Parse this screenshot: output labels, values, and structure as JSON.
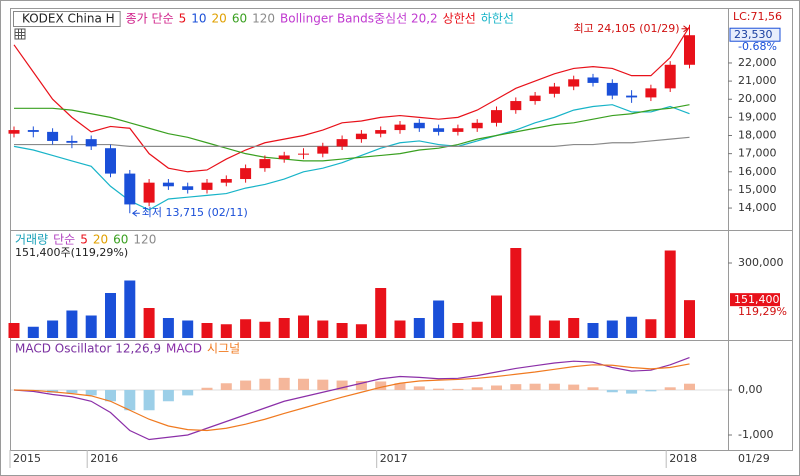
{
  "chart_data": [
    {
      "type": "candlestick",
      "title": "KODEX China H",
      "ma_label": "종가 단순",
      "ma_label_color": "#d0208a",
      "categories": [
        "2015",
        null,
        null,
        null,
        "2016",
        null,
        null,
        null,
        null,
        null,
        null,
        null,
        null,
        null,
        null,
        null,
        null,
        null,
        null,
        "2017",
        null,
        null,
        null,
        null,
        null,
        null,
        null,
        null,
        null,
        null,
        null,
        null,
        null,
        null,
        "2018",
        null
      ],
      "date_label": "01/29",
      "open": [
        18100,
        18300,
        18200,
        17700,
        17800,
        17300,
        15900,
        14300,
        15400,
        15200,
        15000,
        15400,
        15600,
        16200,
        16700,
        17000,
        17000,
        17400,
        17800,
        18100,
        18300,
        18700,
        18400,
        18200,
        18400,
        18700,
        19400,
        19900,
        20300,
        20700,
        21200,
        20900,
        20200,
        20100,
        20600,
        21900
      ],
      "high": [
        18500,
        18500,
        18400,
        18000,
        18000,
        17500,
        16100,
        15600,
        15600,
        15400,
        15600,
        15800,
        16400,
        16900,
        17100,
        17300,
        17600,
        18000,
        18300,
        18500,
        18800,
        18900,
        18600,
        18600,
        18900,
        19600,
        20100,
        20400,
        20900,
        21300,
        21400,
        21100,
        20500,
        20800,
        22100,
        24105
      ],
      "low": [
        17900,
        17900,
        17500,
        17300,
        17200,
        15700,
        13715,
        14100,
        15000,
        14800,
        14800,
        15200,
        15400,
        16000,
        16500,
        16700,
        16800,
        17200,
        17600,
        17900,
        18100,
        18200,
        18000,
        18000,
        18200,
        18500,
        19200,
        19700,
        20100,
        20500,
        20700,
        20000,
        19800,
        19900,
        20400,
        21700
      ],
      "close": [
        18300,
        18200,
        17700,
        17600,
        17400,
        15900,
        14200,
        15400,
        15200,
        15000,
        15400,
        15600,
        16200,
        16700,
        16900,
        17000,
        17400,
        17800,
        18100,
        18300,
        18600,
        18400,
        18200,
        18400,
        18700,
        19400,
        19900,
        20200,
        20700,
        21100,
        20900,
        20200,
        20100,
        20600,
        21900,
        23530
      ],
      "up_color": "#e8111a",
      "down_color": "#1a4fd8",
      "series": [
        {
          "name": "5",
          "color": "#e8111a"
        },
        {
          "name": "10",
          "color": "#1a4fd8"
        },
        {
          "name": "20",
          "color": "#e0a000"
        },
        {
          "name": "60",
          "color": "#3aa020",
          "values": [
            19500,
            19500,
            19500,
            19400,
            19200,
            19000,
            18700,
            18400,
            18100,
            17900,
            17600,
            17300,
            17000,
            16800,
            16700,
            16600,
            16600,
            16700,
            16800,
            16900,
            17000,
            17200,
            17300,
            17500,
            17800,
            18000,
            18200,
            18400,
            18600,
            18700,
            18900,
            19100,
            19200,
            19400,
            19500,
            19700
          ]
        },
        {
          "name": "120",
          "color": "#8a8a8a",
          "values": [
            17500,
            17500,
            17500,
            17500,
            17500,
            17500,
            17400,
            17400,
            17400,
            17400,
            17400,
            17400,
            17400,
            17400,
            17400,
            17400,
            17400,
            17400,
            17400,
            17400,
            17400,
            17400,
            17400,
            17400,
            17400,
            17400,
            17400,
            17400,
            17400,
            17500,
            17500,
            17600,
            17600,
            17700,
            17800,
            17900
          ]
        }
      ],
      "bollinger": {
        "label": "Bollinger Bands중심선 20,2",
        "color": "#c03ad0",
        "series": [
          {
            "name": "상한선",
            "color": "#e8111a",
            "values": [
              23000,
              21500,
              20000,
              19000,
              18200,
              18500,
              18400,
              17000,
              16200,
              16000,
              16100,
              16700,
              17200,
              17600,
              17800,
              18000,
              18300,
              18700,
              18800,
              19000,
              19100,
              19000,
              18900,
              19000,
              19400,
              20000,
              20600,
              21000,
              21400,
              21700,
              21800,
              21700,
              21300,
              21300,
              22300,
              24000
            ]
          },
          {
            "name": "하한선",
            "color": "#18b4c8",
            "values": [
              17400,
              17200,
              16900,
              16600,
              16300,
              15200,
              14400,
              13900,
              14500,
              14600,
              14700,
              14800,
              15100,
              15300,
              15600,
              16000,
              16200,
              16500,
              16900,
              17300,
              17600,
              17700,
              17500,
              17400,
              17700,
              18000,
              18300,
              18700,
              19000,
              19400,
              19600,
              19700,
              19300,
              19300,
              19600,
              19200
            ]
          }
        ]
      },
      "high_label": "최고 24,105 (01/29)",
      "low_label": "최저 13,715 (02/11)",
      "lc_label": "LC:71,56",
      "change": "-0.68%",
      "last": {
        "value": 23530,
        "label": "23,530"
      },
      "ylim": [
        12900,
        24700
      ],
      "yticks": [
        {
          "value": 14000,
          "label": "14,000"
        },
        {
          "value": 15000,
          "label": "15,000"
        },
        {
          "value": 16000,
          "label": "16,000"
        },
        {
          "value": 17000,
          "label": "17,000"
        },
        {
          "value": 18000,
          "label": "18,000"
        },
        {
          "value": 19000,
          "label": "19,000"
        },
        {
          "value": 20000,
          "label": "20,000"
        },
        {
          "value": 21000,
          "label": "21,000"
        },
        {
          "value": 22000,
          "label": "22,000"
        }
      ]
    },
    {
      "type": "bar",
      "title": "거래량",
      "title_color": "#18a0b8",
      "ma_label": "단순",
      "ma_label_color": "#b040c0",
      "ma_legend": [
        {
          "name": "5",
          "color": "#e8111a"
        },
        {
          "name": "20",
          "color": "#e0a000"
        },
        {
          "name": "60",
          "color": "#3aa020"
        },
        {
          "name": "120",
          "color": "#8a8a8a"
        }
      ],
      "info": "151,400주(119,29%)",
      "ratio": "119,29%",
      "values": [
        60000,
        45000,
        70000,
        110000,
        90000,
        180000,
        230000,
        120000,
        80000,
        70000,
        60000,
        55000,
        75000,
        65000,
        80000,
        90000,
        70000,
        60000,
        55000,
        200000,
        70000,
        80000,
        150000,
        60000,
        65000,
        170000,
        360000,
        90000,
        70000,
        80000,
        60000,
        70000,
        85000,
        75000,
        350000,
        151400
      ],
      "last": {
        "value": 151400,
        "label": "151,400"
      },
      "ylim": [
        0,
        424000
      ],
      "yticks": [
        {
          "value": 300000,
          "label": "300,000"
        }
      ]
    },
    {
      "type": "line",
      "title": "MACD Oscillator 12,26,9",
      "title_color": "#7a2fa0",
      "histogram": {
        "values": [
          0,
          -20,
          -60,
          -70,
          -120,
          -250,
          -450,
          -450,
          -250,
          -120,
          50,
          150,
          210,
          250,
          270,
          250,
          230,
          210,
          200,
          190,
          150,
          80,
          30,
          25,
          60,
          100,
          130,
          140,
          140,
          120,
          60,
          -50,
          -80,
          -30,
          60,
          140
        ],
        "up_color": "#f5b79b",
        "down_color": "#9ccfe8"
      },
      "series": [
        {
          "name": "MACD",
          "color": "#8b2fa8",
          "values": [
            0,
            -30,
            -100,
            -150,
            -250,
            -500,
            -900,
            -1100,
            -1050,
            -1000,
            -850,
            -700,
            -550,
            -400,
            -250,
            -150,
            -50,
            50,
            150,
            250,
            300,
            280,
            250,
            260,
            320,
            400,
            480,
            540,
            600,
            640,
            620,
            500,
            420,
            440,
            560,
            720
          ]
        },
        {
          "name": "시그널",
          "color": "#f07a20",
          "values": [
            0,
            -10,
            -40,
            -80,
            -130,
            -250,
            -450,
            -650,
            -800,
            -880,
            -900,
            -850,
            -760,
            -650,
            -520,
            -400,
            -280,
            -160,
            -50,
            60,
            150,
            200,
            220,
            235,
            260,
            300,
            350,
            400,
            460,
            520,
            560,
            550,
            500,
            470,
            500,
            580
          ]
        }
      ],
      "ylim": [
        -1289,
        1067
      ],
      "yticks": [
        {
          "value": 0,
          "label": "0,00"
        },
        {
          "value": -1000,
          "label": "-1,000"
        }
      ]
    }
  ]
}
